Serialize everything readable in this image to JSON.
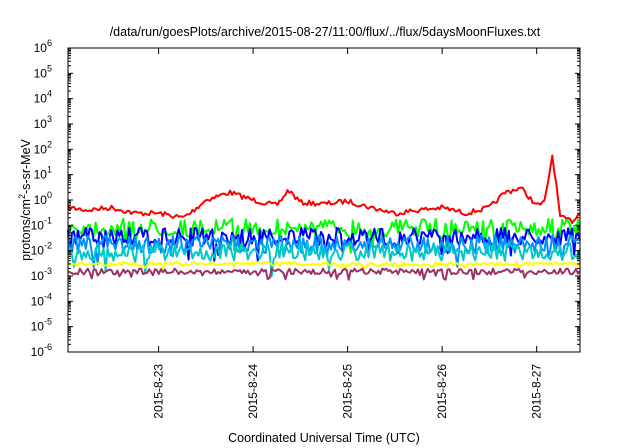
{
  "chart_data": {
    "type": "line",
    "title": "/data/run/goesPlots/archive/2015-08-27/11:00/flux/../flux/5daysMoonFluxes.txt",
    "xlabel": "Coordinated Universal Time (UTC)",
    "ylabel": {
      "prefix": "protons/cm",
      "superscript": "2",
      "suffix": "-s-sr-MeV"
    },
    "yscale": "log",
    "ylim": [
      1e-06,
      1000000.0
    ],
    "y_ticks": [
      {
        "base": "10",
        "exp": "-6"
      },
      {
        "base": "10",
        "exp": "-5"
      },
      {
        "base": "10",
        "exp": "-4"
      },
      {
        "base": "10",
        "exp": "-3"
      },
      {
        "base": "10",
        "exp": "-2"
      },
      {
        "base": "10",
        "exp": "-1"
      },
      {
        "base": "10",
        "exp": "0"
      },
      {
        "base": "10",
        "exp": "1"
      },
      {
        "base": "10",
        "exp": "2"
      },
      {
        "base": "10",
        "exp": "3"
      },
      {
        "base": "10",
        "exp": "4"
      },
      {
        "base": "10",
        "exp": "5"
      },
      {
        "base": "10",
        "exp": "6"
      }
    ],
    "xlim": [
      "2015-08-22T01:00",
      "2015-08-27T11:00"
    ],
    "x_ticks": [
      "2015-8-23",
      "2015-8-24",
      "2015-8-25",
      "2015-8-26",
      "2015-8-27"
    ],
    "grid": false,
    "legend": "none",
    "series": [
      {
        "color": "#ff0000",
        "approx_level": 0.5,
        "x": [
          "2015-08-22T01:00",
          "2015-08-22T06:00",
          "2015-08-22T12:00",
          "2015-08-22T18:00",
          "2015-08-23T00:00",
          "2015-08-23T06:00",
          "2015-08-23T08:00",
          "2015-08-23T12:00",
          "2015-08-23T18:00",
          "2015-08-24T00:00",
          "2015-08-24T06:00",
          "2015-08-24T09:00",
          "2015-08-24T12:00",
          "2015-08-24T18:00",
          "2015-08-25T00:00",
          "2015-08-25T06:00",
          "2015-08-25T12:00",
          "2015-08-25T18:00",
          "2015-08-26T00:00",
          "2015-08-26T06:00",
          "2015-08-26T12:00",
          "2015-08-26T16:00",
          "2015-08-26T20:00",
          "2015-08-27T00:00",
          "2015-08-27T02:00",
          "2015-08-27T04:00",
          "2015-08-27T06:00",
          "2015-08-27T09:00",
          "2015-08-27T11:00"
        ],
        "y": [
          0.5,
          0.4,
          0.5,
          0.3,
          0.3,
          0.2,
          0.3,
          1.0,
          2.0,
          1.0,
          0.6,
          2.5,
          0.8,
          0.7,
          0.9,
          0.5,
          0.3,
          0.4,
          0.5,
          0.3,
          0.5,
          2.0,
          3.0,
          0.6,
          0.8,
          60,
          0.2,
          0.15,
          0.3
        ]
      },
      {
        "color": "#00ff00",
        "approx_level": 0.08,
        "x": [],
        "y": []
      },
      {
        "color": "#0000ff",
        "approx_level": 0.035,
        "x": [],
        "y": []
      },
      {
        "color": "#0090ff",
        "approx_level": 0.018,
        "x": [],
        "y": []
      },
      {
        "color": "#00c8c8",
        "approx_level": 0.009,
        "x": [],
        "y": []
      },
      {
        "color": "#ffff00",
        "approx_level": 0.003,
        "x": [],
        "y": []
      },
      {
        "color": "#993366",
        "approx_level": 0.0015,
        "x": [],
        "y": []
      }
    ]
  }
}
